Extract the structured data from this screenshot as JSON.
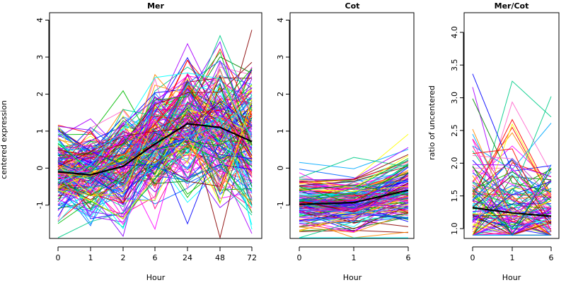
{
  "chart_data": [
    {
      "type": "line",
      "title": "Mer",
      "xlabel": "Hour",
      "ylabel": "centered expression",
      "x_categories": [
        "0",
        "1",
        "2",
        "6",
        "24",
        "48",
        "72"
      ],
      "y_ticks": [
        "-1",
        "0",
        "1",
        "2",
        "3",
        "4"
      ],
      "ylim": [
        -1.9,
        4.2
      ],
      "mean_series": {
        "values": [
          -0.1,
          -0.18,
          0.05,
          0.65,
          1.2,
          1.1,
          0.72
        ]
      },
      "individual_series_style": "many thin multicolored gene profile lines"
    },
    {
      "type": "line",
      "title": "Cot",
      "xlabel": "Hour",
      "ylabel": "",
      "x_categories": [
        "0",
        "1",
        "6"
      ],
      "y_ticks": [
        "-1",
        "0",
        "1",
        "2",
        "3",
        "4"
      ],
      "ylim": [
        -1.9,
        4.2
      ],
      "mean_series": {
        "values": [
          -0.98,
          -0.93,
          -0.6
        ]
      },
      "individual_series_style": "many thin multicolored gene profile lines"
    },
    {
      "type": "line",
      "title": "Mer/Cot",
      "xlabel": "Hour",
      "ylabel": "ratio of uncentered",
      "x_categories": [
        "0",
        "1",
        "6"
      ],
      "y_ticks": [
        "1.0",
        "1.5",
        "2.0",
        "2.5",
        "3.0",
        "3.5",
        "4.0"
      ],
      "ylim": [
        0.85,
        4.3
      ],
      "mean_series": {
        "values": [
          1.32,
          1.24,
          1.19
        ]
      },
      "individual_series_style": "many thin multicolored gene profile lines"
    }
  ],
  "colors": [
    "#ff0000",
    "#00bb00",
    "#0000ff",
    "#ff00ff",
    "#00ffff",
    "#ffff00",
    "#ff8800",
    "#8800ff",
    "#ff0088",
    "#00aaff",
    "#008800",
    "#880000",
    "#aa00ff",
    "#0066ff",
    "#ff66cc",
    "#00cc88"
  ]
}
